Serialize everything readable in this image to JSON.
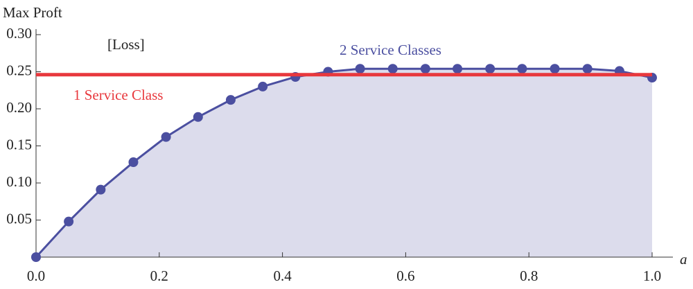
{
  "chart_data": {
    "type": "line",
    "ylabel": "Max Proft",
    "xlabel": "a",
    "annotations": [
      "[Loss]"
    ],
    "x": [
      0,
      0.053,
      0.105,
      0.158,
      0.211,
      0.263,
      0.316,
      0.368,
      0.421,
      0.474,
      0.526,
      0.579,
      0.632,
      0.684,
      0.737,
      0.789,
      0.842,
      0.895,
      0.947,
      1
    ],
    "series": [
      {
        "name": "2 Service Classes",
        "color": "#4b4fa0",
        "values": [
          0,
          0.048,
          0.091,
          0.128,
          0.162,
          0.189,
          0.212,
          0.23,
          0.243,
          0.25,
          0.254,
          0.254,
          0.254,
          0.254,
          0.254,
          0.254,
          0.254,
          0.254,
          0.251,
          0.242
        ]
      }
    ],
    "hline": {
      "name": "1 Service Class",
      "value": 0.246,
      "color": "#e8383d"
    },
    "area_color": "#dcdcec",
    "xlim": [
      0,
      1
    ],
    "ylim": [
      0,
      0.3
    ],
    "xticks": [
      {
        "value": 0,
        "label": "0.0"
      },
      0.2,
      0.4,
      0.6,
      0.8,
      {
        "value": 1,
        "label": "1.0"
      }
    ],
    "yticks": [
      0.05,
      {
        "value": 0.1,
        "label": "0.10"
      },
      0.15,
      {
        "value": 0.2,
        "label": "0.20"
      },
      0.25,
      {
        "value": 0.3,
        "label": "0.30"
      }
    ]
  }
}
